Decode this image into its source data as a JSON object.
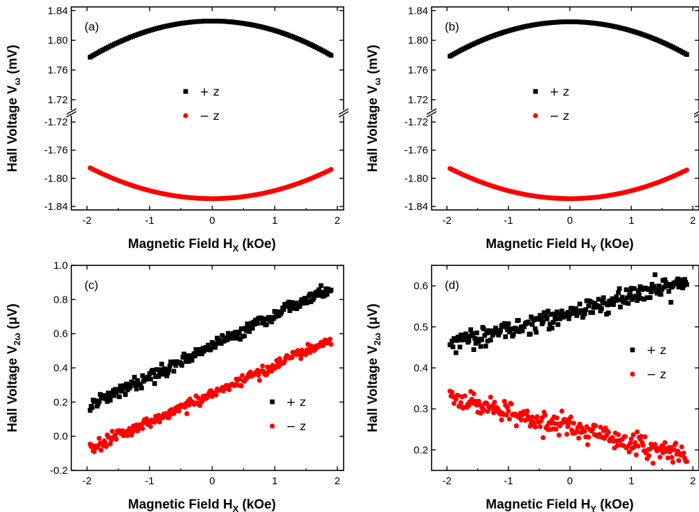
{
  "colors": {
    "series_plus": "#000000",
    "series_minus": "#ff0000",
    "axis": "#000000"
  },
  "chart_data": [
    {
      "type": "scatter",
      "panel_label": "(a)",
      "xlabel": "Magnetic Field H",
      "xlabel_sub": "X",
      "xlabel_tail": " (kOe)",
      "ylabel": "Hall Voltage V",
      "ylabel_sub": "ω",
      "ylabel_tail": " (mV)",
      "xlim": [
        -2.25,
        2.1
      ],
      "x_ticks": [
        -2,
        -1,
        0,
        1,
        2
      ],
      "x_tick_labels": [
        "-2",
        "-1",
        "0",
        "1",
        "2"
      ],
      "broken_y_axis": true,
      "y_upper": {
        "ylim": [
          1.705,
          1.845
        ],
        "ticks": [
          1.72,
          1.76,
          1.8,
          1.84
        ],
        "tick_labels": [
          "1.72",
          "1.76",
          "1.80",
          "1.84"
        ]
      },
      "y_lower": {
        "ylim": [
          -1.845,
          -1.71
        ],
        "ticks": [
          -1.84,
          -1.8,
          -1.76,
          -1.72
        ],
        "tick_labels": [
          "-1.84",
          "-1.80",
          "-1.76",
          "-1.72"
        ]
      },
      "legend": [
        "+ z",
        "− z"
      ],
      "series": [
        {
          "name": "+ z",
          "marker": "square",
          "model": "quadratic",
          "x_range": [
            -1.95,
            1.9
          ],
          "n": 120,
          "vertex": 1.826,
          "curvature": -0.0128,
          "noise": 0
        },
        {
          "name": "− z",
          "marker": "circle",
          "model": "quadratic",
          "x_range": [
            -1.95,
            1.9
          ],
          "n": 120,
          "vertex": -1.829,
          "curvature": 0.0115,
          "noise": 0
        }
      ]
    },
    {
      "type": "scatter",
      "panel_label": "(b)",
      "xlabel": "Magnetic Field H",
      "xlabel_sub": "Y",
      "xlabel_tail": " (kOe)",
      "ylabel": "Hall Voltage V",
      "ylabel_sub": "ω",
      "ylabel_tail": " (mV)",
      "xlim": [
        -2.25,
        2.1
      ],
      "x_ticks": [
        -2,
        -1,
        0,
        1,
        2
      ],
      "x_tick_labels": [
        "-2",
        "-1",
        "0",
        "1",
        "2"
      ],
      "broken_y_axis": true,
      "y_upper": {
        "ylim": [
          1.705,
          1.845
        ],
        "ticks": [
          1.72,
          1.76,
          1.8,
          1.84
        ],
        "tick_labels": [
          "1.72",
          "1.76",
          "1.80",
          "1.84"
        ]
      },
      "y_lower": {
        "ylim": [
          -1.845,
          -1.71
        ],
        "ticks": [
          -1.84,
          -1.8,
          -1.76,
          -1.72
        ],
        "tick_labels": [
          "-1.84",
          "-1.80",
          "-1.76",
          "-1.72"
        ]
      },
      "legend": [
        "+ z",
        "− z"
      ],
      "series": [
        {
          "name": "+ z",
          "marker": "square",
          "model": "quadratic",
          "x_range": [
            -1.95,
            1.9
          ],
          "n": 120,
          "vertex": 1.825,
          "curvature": -0.0122,
          "noise": 0
        },
        {
          "name": "− z",
          "marker": "circle",
          "model": "quadratic",
          "x_range": [
            -1.95,
            1.9
          ],
          "n": 120,
          "vertex": -1.829,
          "curvature": 0.0113,
          "noise": 0
        }
      ]
    },
    {
      "type": "scatter",
      "panel_label": "(c)",
      "xlabel": "Magnetic Field H",
      "xlabel_sub": "X",
      "xlabel_tail": " (kOe)",
      "ylabel": "Hall Voltage V",
      "ylabel_sub": "2ω",
      "ylabel_tail": " (μV)",
      "xlim": [
        -2.25,
        2.1
      ],
      "x_ticks": [
        -2,
        -1,
        0,
        1,
        2
      ],
      "x_tick_labels": [
        "-2",
        "-1",
        "0",
        "1",
        "2"
      ],
      "broken_y_axis": false,
      "ylim": [
        -0.2,
        1.0
      ],
      "y_ticks": [
        -0.2,
        0.0,
        0.2,
        0.4,
        0.6,
        0.8,
        1.0
      ],
      "y_tick_labels": [
        "-0.2",
        "0.0",
        "0.2",
        "0.4",
        "0.6",
        "0.8",
        "1.0"
      ],
      "legend": [
        "+ z",
        "− z"
      ],
      "series": [
        {
          "name": "+ z",
          "marker": "square",
          "model": "linear",
          "x_range": [
            -1.95,
            1.9
          ],
          "n": 240,
          "intercept": 0.53,
          "slope": 0.18,
          "noise": 0.018
        },
        {
          "name": "− z",
          "marker": "circle",
          "model": "linear",
          "x_range": [
            -1.95,
            1.9
          ],
          "n": 240,
          "intercept": 0.25,
          "slope": 0.165,
          "noise": 0.018
        }
      ]
    },
    {
      "type": "scatter",
      "panel_label": "(d)",
      "xlabel": "Magnetic Field H",
      "xlabel_sub": "Y",
      "xlabel_tail": " (kOe)",
      "ylabel": "Hall Voltage V",
      "ylabel_sub": "2ω",
      "ylabel_tail": " (μV)",
      "xlim": [
        -2.25,
        2.1
      ],
      "x_ticks": [
        -2,
        -1,
        0,
        1,
        2
      ],
      "x_tick_labels": [
        "-2",
        "-1",
        "0",
        "1",
        "2"
      ],
      "broken_y_axis": false,
      "ylim": [
        0.15,
        0.65
      ],
      "y_ticks": [
        0.2,
        0.3,
        0.4,
        0.5,
        0.6
      ],
      "y_tick_labels": [
        "0.2",
        "0.3",
        "0.4",
        "0.5",
        "0.6"
      ],
      "legend": [
        "+ z",
        "− z"
      ],
      "series": [
        {
          "name": "+ z",
          "marker": "square",
          "model": "linear",
          "x_range": [
            -1.95,
            1.9
          ],
          "n": 240,
          "intercept": 0.535,
          "slope": 0.04,
          "noise": 0.012
        },
        {
          "name": "− z",
          "marker": "circle",
          "model": "linear",
          "x_range": [
            -1.95,
            1.9
          ],
          "n": 240,
          "intercept": 0.255,
          "slope": -0.037,
          "noise": 0.013
        }
      ]
    }
  ]
}
